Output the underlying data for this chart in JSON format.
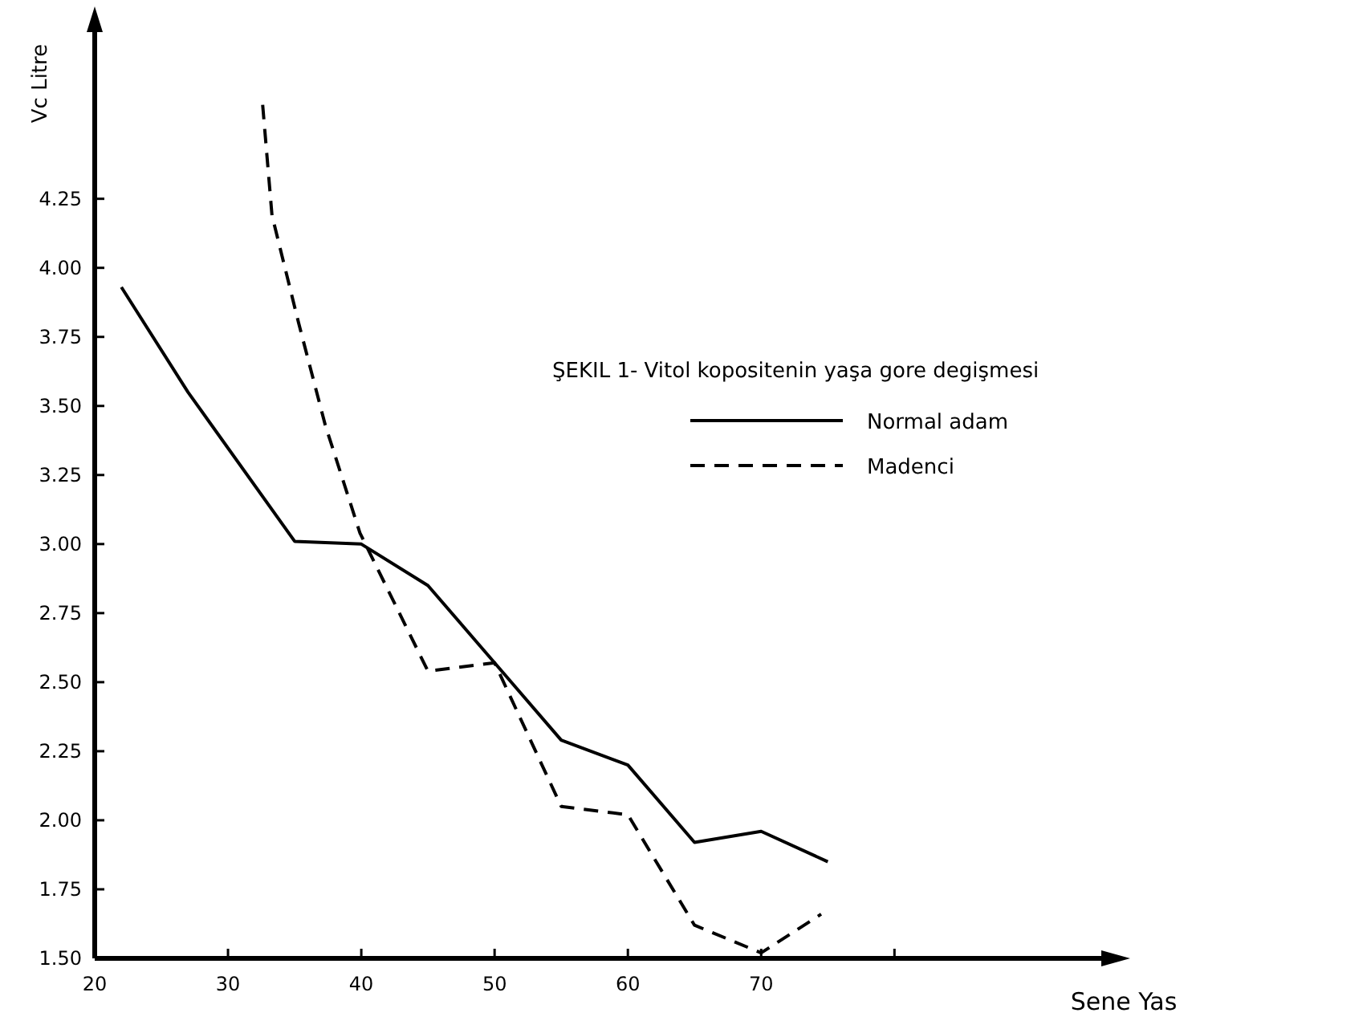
{
  "chart_data": {
    "type": "line",
    "title": "ŞEKIL 1- Vitol kopositenin yaşa gore degişmesi",
    "xlabel": "Sene Yas",
    "ylabel": "Vc Litre",
    "xlim": [
      20,
      96
    ],
    "xticks": [
      20,
      30,
      40,
      50,
      60,
      70,
      {
        "value": 80,
        "label": null
      }
    ],
    "ylim": [
      1.5,
      4.9
    ],
    "yticks": [
      {
        "value": 1.5,
        "label": "1.50"
      },
      1.75,
      {
        "value": 2,
        "label": "2.00"
      },
      2.25,
      {
        "value": 2.5,
        "label": "2.50"
      },
      2.75,
      {
        "value": 3,
        "label": "3.00"
      },
      3.25,
      {
        "value": 3.5,
        "label": "3.50"
      },
      3.75,
      {
        "value": 4,
        "label": "4.00"
      },
      4.25
    ],
    "legend": "right",
    "grid": false,
    "marker": "none",
    "series": [
      {
        "name": "Normal adam",
        "color": "#000000",
        "line_style": "solid",
        "x": [
          22,
          27,
          35,
          40,
          45,
          50,
          55,
          60,
          65,
          70,
          75
        ],
        "values": [
          3.93,
          3.55,
          3.01,
          3.0,
          2.85,
          2.57,
          2.29,
          2.2,
          1.92,
          1.96,
          1.85
        ]
      },
      {
        "name": "Madenci",
        "color": "#000000",
        "line_style": "dashed",
        "x": [
          32.6,
          33.3,
          35.3,
          37.3,
          39.9,
          45,
          50,
          55,
          60,
          65,
          70,
          74.5
        ],
        "values": [
          4.59,
          4.19,
          3.8,
          3.43,
          3.04,
          2.54,
          2.57,
          2.05,
          2.02,
          1.62,
          1.52,
          1.66
        ]
      }
    ]
  }
}
